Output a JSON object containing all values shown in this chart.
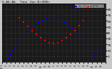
{
  "title": "S. Alt. Alt.    Time   Sun  B+W/B+",
  "bg_color": "#c8c8c8",
  "plot_bg": "#1a1a1a",
  "grid_color": "#555555",
  "xlim": [
    0,
    96
  ],
  "ylim": [
    -10,
    90
  ],
  "yticks": [
    0,
    10,
    20,
    30,
    40,
    50,
    60,
    70,
    80
  ],
  "ytick_labels": [
    "0.",
    "10.",
    "20.",
    "30.",
    "40.",
    "50.",
    "60.",
    "70.",
    "80."
  ],
  "sun_altitude_x": [
    6,
    8,
    10,
    12,
    14,
    18,
    22,
    26,
    30,
    34,
    38,
    42,
    46,
    50,
    54,
    58,
    62,
    66,
    70,
    74,
    78,
    82,
    86,
    90
  ],
  "sun_altitude_y": [
    -5,
    2,
    8,
    14,
    22,
    30,
    38,
    46,
    52,
    57,
    61,
    64,
    65,
    64,
    61,
    57,
    52,
    46,
    38,
    28,
    18,
    8,
    -2,
    10
  ],
  "incidence_x": [
    16,
    20,
    24,
    28,
    32,
    36,
    40,
    44,
    48,
    52,
    56,
    60,
    64,
    68,
    72,
    76
  ],
  "incidence_y": [
    65,
    58,
    51,
    44,
    37,
    31,
    26,
    23,
    22,
    23,
    26,
    31,
    37,
    44,
    52,
    60
  ],
  "sun_color": "#0000ff",
  "incidence_color": "#ff0000",
  "dot_size": 3,
  "xtick_positions": [
    0,
    4,
    8,
    12,
    16,
    20,
    24,
    28,
    32,
    36,
    40,
    44,
    48,
    52,
    56,
    60,
    64,
    68,
    72,
    76,
    80,
    84,
    88,
    92,
    96
  ],
  "xtick_labels": [
    "Tu 1",
    "2",
    "3",
    "4",
    "5",
    "6",
    "7",
    "8",
    "9",
    "10",
    "11",
    "12",
    "1",
    "2",
    "3",
    "4",
    "5",
    "6",
    "7",
    "8",
    "9",
    "10",
    "11",
    "12",
    ""
  ],
  "legend_entries": [
    "HOr PV1 IN APPEND TO"
  ],
  "legend_colors_blue": "#0000ff",
  "legend_colors_red": "#ff0000"
}
